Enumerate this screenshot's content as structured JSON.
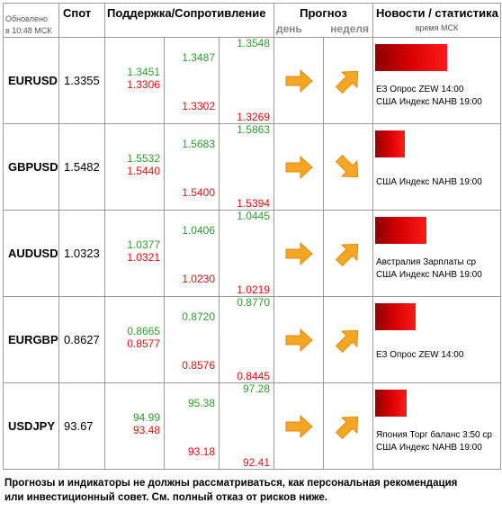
{
  "header": {
    "updated_line1": "Обновлено",
    "updated_line2": "в 10:48 МСК",
    "spot": "Спот",
    "support_resistance": "Поддержка/Сопротивление",
    "forecast": "Прогноз",
    "day": "день",
    "week": "неделя",
    "news": "Новости / статистика",
    "time_note": "время МСК"
  },
  "rows": [
    {
      "pair": "EURUSD",
      "spot": "1.3355",
      "c1": [
        "1.3451",
        "1.3306"
      ],
      "c2": [
        "1.3487",
        "1.3302"
      ],
      "c3": [
        "1.3548",
        "1.3269"
      ],
      "day_dir": "right",
      "week_dir": "up",
      "bar_fraction": 0.95,
      "news": [
        "ЕЗ Опрос ZEW 14:00",
        "США Индекс NAHB 19:00"
      ]
    },
    {
      "pair": "GBPUSD",
      "spot": "1.5482",
      "c1": [
        "1.5532",
        "1.5440"
      ],
      "c2": [
        "1.5683",
        "1.5400"
      ],
      "c3": [
        "1.5863",
        "1.5394"
      ],
      "day_dir": "right",
      "week_dir": "down",
      "bar_fraction": 0.39,
      "news": [
        "США Индекс NAHB 19:00"
      ]
    },
    {
      "pair": "AUDUSD",
      "spot": "1.0323",
      "c1": [
        "1.0377",
        "1.0321"
      ],
      "c2": [
        "1.0406",
        "1.0230"
      ],
      "c3": [
        "1.0445",
        "1.0219"
      ],
      "day_dir": "right",
      "week_dir": "up",
      "bar_fraction": 0.68,
      "news": [
        "Австралия Зарплаты ср",
        "США Индекс NAHB 19:00"
      ]
    },
    {
      "pair": "EURGBP",
      "spot": "0.8627",
      "c1": [
        "0.8665",
        "0.8577"
      ],
      "c2": [
        "0.8720",
        "0.8576"
      ],
      "c3": [
        "0.8770",
        "0.8445"
      ],
      "day_dir": "right",
      "week_dir": "up",
      "bar_fraction": 0.53,
      "news": [
        "ЕЗ Опрос ZEW 14:00"
      ]
    },
    {
      "pair": "USDJPY",
      "spot": "93.67",
      "c1": [
        "94.99",
        "93.48"
      ],
      "c2": [
        "95.38",
        "93.18"
      ],
      "c3": [
        "97.28",
        "92.41"
      ],
      "day_dir": "right",
      "week_dir": "up",
      "bar_fraction": 0.42,
      "news": [
        "Япония Торг баланс 3:50 ср",
        "США Индекс NAHB 19:00"
      ]
    }
  ],
  "footer": "Прогнозы и индикаторы не должны рассматриваться, как персональная рекомендация или инвестиционный совет. См. полный отказ от рисков ниже.",
  "colors": {
    "support": "#2aa12a",
    "resistance": "#e81010",
    "arrow": "#f5a623"
  }
}
